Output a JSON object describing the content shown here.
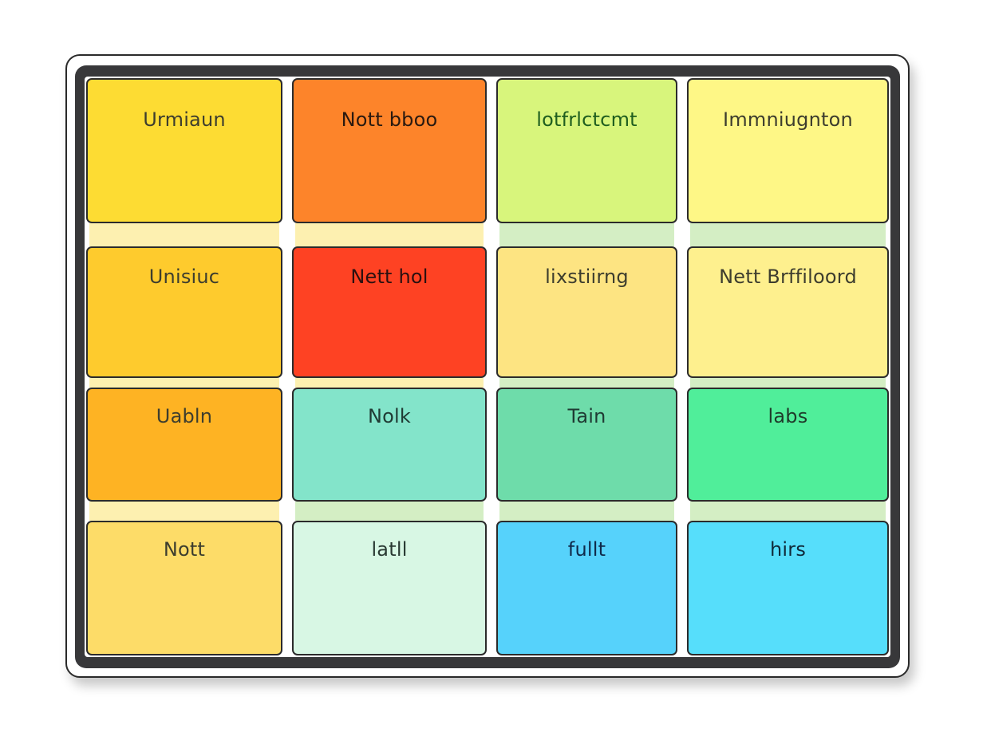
{
  "grid": {
    "rows": [
      [
        {
          "label": "Urmiaun",
          "bg": "#fddc33",
          "color": "#3d3d2e"
        },
        {
          "label": "Nott bboo",
          "bg": "#fd842a",
          "color": "#2a1a10"
        },
        {
          "label": "lotfrlctcmt",
          "bg": "#d8f57c",
          "color": "#1f5e1f"
        },
        {
          "label": "Immniugnton",
          "bg": "#fef786",
          "color": "#3d3d2e"
        }
      ],
      [
        {
          "label": "Unisiuc",
          "bg": "#fecb2d",
          "color": "#3d3d2e"
        },
        {
          "label": "Nett hol",
          "bg": "#fe4223",
          "color": "#2a1010"
        },
        {
          "label": "lixstiirng",
          "bg": "#fde482",
          "color": "#3d3d2e"
        },
        {
          "label": "Nett Brffiloord",
          "bg": "#fef08e",
          "color": "#3d3d2e"
        }
      ],
      [
        {
          "label": "Uabln",
          "bg": "#feb323",
          "color": "#3d3d2e"
        },
        {
          "label": "Nolk",
          "bg": "#83e4ca",
          "color": "#1f3a33"
        },
        {
          "label": "Tain",
          "bg": "#6edcaa",
          "color": "#1f3a33"
        },
        {
          "label": "labs",
          "bg": "#50ee9a",
          "color": "#1f3a2a"
        }
      ],
      [
        {
          "label": "Nott",
          "bg": "#fddc68",
          "color": "#3d3d2e"
        },
        {
          "label": "latll",
          "bg": "#d8f7e4",
          "color": "#2a3a33"
        },
        {
          "label": "fullt",
          "bg": "#56d2fb",
          "color": "#102a4a"
        },
        {
          "label": "hirs",
          "bg": "#56defb",
          "color": "#102a3a"
        }
      ]
    ],
    "strip_colors": [
      [
        "#fdf0b0",
        "#fdf0b0",
        "#d4eec4",
        "#d4eec4"
      ],
      [
        "#fdf0b0",
        "#fdf0b0",
        "#d4eec4",
        "#d4eec4"
      ],
      [
        "#fdf0b0",
        "#d4eec4",
        "#d4eec4",
        "#d4eec4"
      ]
    ]
  }
}
